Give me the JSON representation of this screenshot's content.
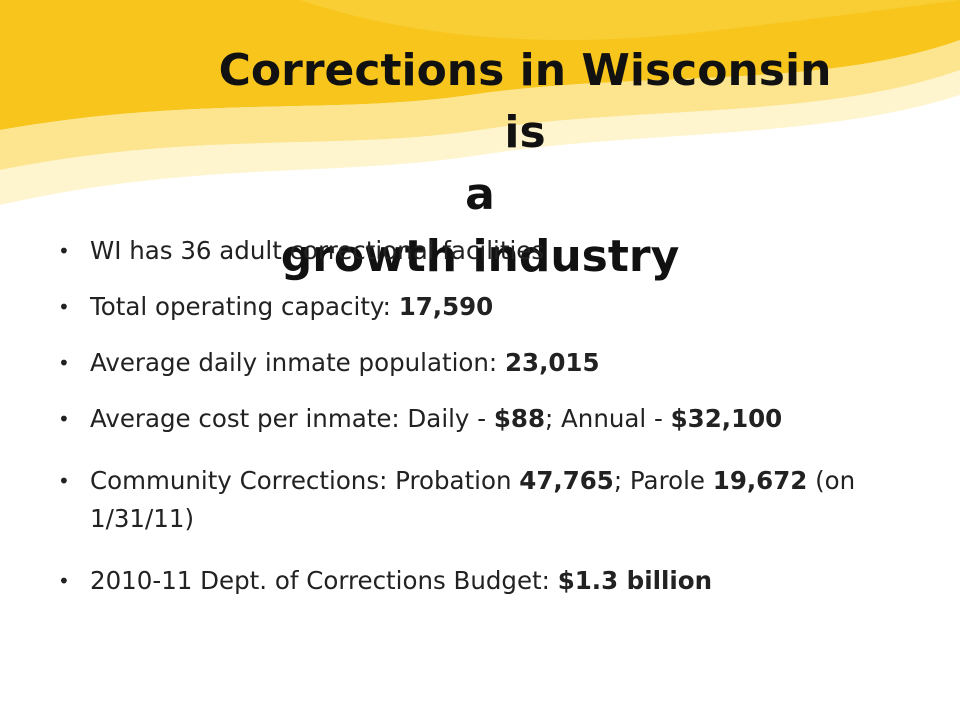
{
  "slide": {
    "title_line1": "Corrections in Wisconsin is",
    "title_line2": "a",
    "title_line3": "growth industry"
  },
  "bullets": [
    {
      "text": "WI has 36 adult correctional facilities"
    },
    {
      "label": "Total operating capacity: ",
      "value": "17,590"
    },
    {
      "label": "Average daily inmate population: ",
      "value": "23,015"
    },
    {
      "p1": "Average cost per inmate: Daily - ",
      "v1": "$88",
      "p2": "; Annual - ",
      "v2": "$32,100"
    },
    {
      "p1": "Community Corrections: Probation ",
      "v1": "47,765",
      "p2": "; Parole ",
      "v2": "19,672",
      "p3": " (on 1/31/11)"
    },
    {
      "label": "2010-11 Dept. of Corrections Budget: ",
      "value": "$1.3 billion"
    }
  ],
  "colors": {
    "swoosh_primary": "#F7C51C",
    "swoosh_light": "#FBE07A",
    "text": "#222222"
  }
}
